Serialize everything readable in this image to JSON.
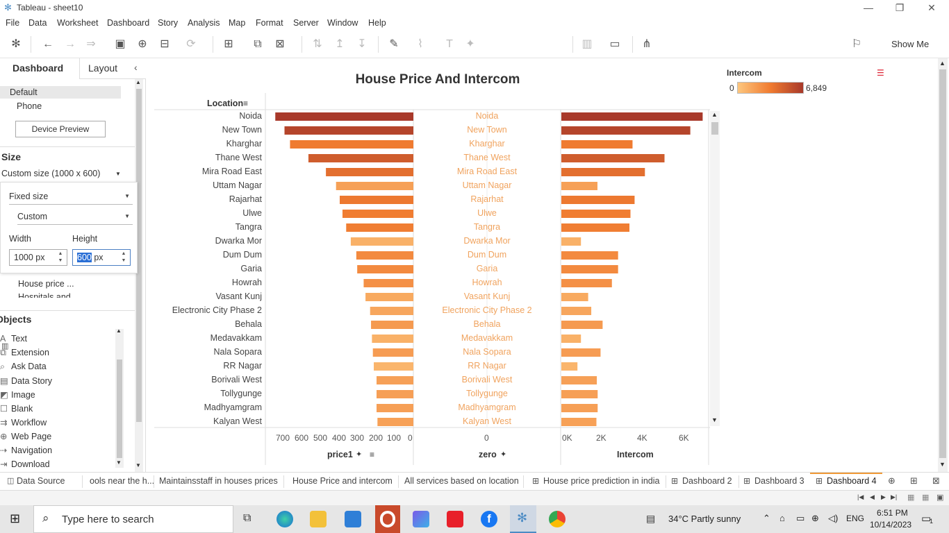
{
  "window": {
    "title": "Tableau - sheet10"
  },
  "menu": [
    "File",
    "Data",
    "Worksheet",
    "Dashboard",
    "Story",
    "Analysis",
    "Map",
    "Format",
    "Server",
    "Window",
    "Help"
  ],
  "toolbar": {
    "show_me": "Show Me"
  },
  "left_pane": {
    "tab_dashboard": "Dashboard",
    "tab_layout": "Layout",
    "device_default": "Default",
    "device_phone": "Phone",
    "device_preview": "Device Preview",
    "size_heading": "Size",
    "size_value": "Custom size (1000 x 600)",
    "size_mode": "Fixed size",
    "size_preset": "Custom",
    "width_label": "Width",
    "height_label": "Height",
    "width_value": "1000 px",
    "height_value_selected": "600",
    "height_unit": "px",
    "sheet_item_1": "House price ...",
    "sheet_item_2": "Hospitals and",
    "objects_heading": "Objects",
    "objects": [
      "Text",
      "Extension",
      "Ask Data",
      "Data Story",
      "Image",
      "Blank",
      "Workflow",
      "Web Page",
      "Navigation",
      "Download"
    ]
  },
  "dashboard": {
    "title": "House Price And Intercom",
    "location_header": "Location",
    "axis_price": "price1",
    "axis_zero": "zero",
    "axis_intercom": "Intercom",
    "price_ticks": [
      "700",
      "600",
      "500",
      "400",
      "300",
      "200",
      "100",
      "0"
    ],
    "zero_tick": "0",
    "intercom_ticks": [
      "0K",
      "2K",
      "4K",
      "6K"
    ],
    "legend": {
      "title": "Intercom",
      "min": "0",
      "max": "6,849"
    }
  },
  "chart_data": {
    "type": "bar",
    "title": "House Price And Intercom",
    "categories": [
      "Noida",
      "New Town",
      "Kharghar",
      "Thane West",
      "Mira Road East",
      "Uttam Nagar",
      "Rajarhat",
      "Ulwe",
      "Tangra",
      "Dwarka Mor",
      "Dum Dum",
      "Garia",
      "Howrah",
      "Vasant Kunj",
      "Electronic City Phase 2",
      "Behala",
      "Medavakkam",
      "Nala Sopara",
      "RR Nagar",
      "Borivali West",
      "Tollygunge",
      "Madhyamgram",
      "Kalyan West"
    ],
    "series": [
      {
        "name": "price1",
        "values": [
          750,
          700,
          670,
          570,
          475,
          420,
          400,
          385,
          365,
          340,
          310,
          305,
          270,
          260,
          235,
          230,
          225,
          220,
          215,
          200,
          200,
          200,
          195
        ]
      },
      {
        "name": "Intercom",
        "values": [
          6849,
          6250,
          3450,
          5000,
          4050,
          1750,
          3550,
          3350,
          3300,
          950,
          2750,
          2750,
          2450,
          1300,
          1450,
          2000,
          950,
          1900,
          780,
          1720,
          1760,
          1760,
          1700
        ]
      }
    ],
    "price_axis": {
      "label": "price1",
      "range": [
        0,
        780
      ],
      "reversed": true
    },
    "intercom_axis": {
      "label": "Intercom",
      "range": [
        0,
        7200
      ]
    },
    "color_legend": {
      "title": "Intercom",
      "min": 0,
      "max": 6849,
      "colors": [
        "#fdc67e",
        "#f07b30",
        "#a8392a"
      ]
    }
  },
  "sheet_tabs": [
    "Data Source",
    "ools near the h...",
    "Maintainsstaff in houses prices",
    "House Price and intercom",
    "All services based on location",
    "House price prediction in india",
    "Dashboard 2",
    "Dashboard 3",
    "Dashboard 4"
  ],
  "taskbar": {
    "search_placeholder": "Type here to search",
    "weather": "34°C  Partly sunny",
    "lang": "ENG",
    "time": "6:51 PM",
    "date": "10/14/2023",
    "notif": "1"
  }
}
